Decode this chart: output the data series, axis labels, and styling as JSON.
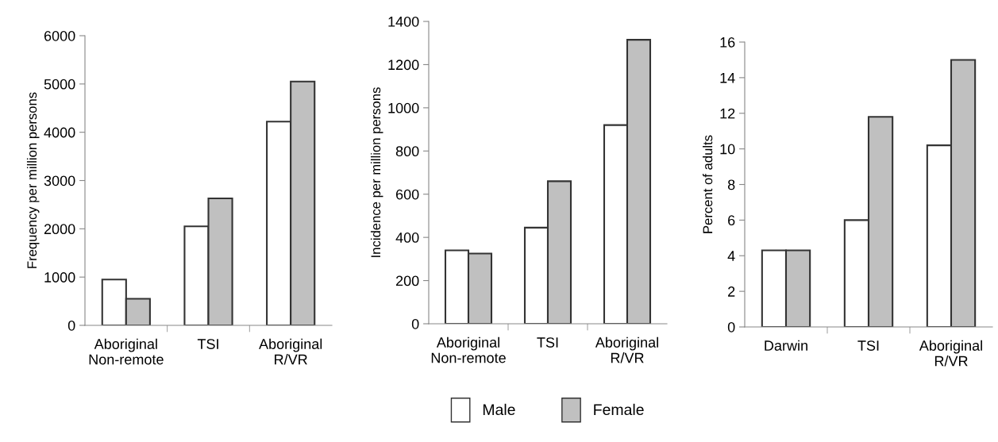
{
  "chart_data": [
    {
      "type": "bar",
      "ylabel": "Frequency per million persons",
      "categories": [
        "Aboriginal\nNon-remote",
        "TSI",
        "Aboriginal\nR/VR"
      ],
      "series": [
        {
          "color": "#ffffff",
          "values": [
            950,
            2050,
            4220
          ]
        },
        {
          "color": "#c0c0c0",
          "values": [
            550,
            2630,
            5050
          ]
        }
      ],
      "ylim": [
        0,
        6000
      ],
      "yticks": [
        0,
        1000,
        2000,
        3000,
        4000,
        5000,
        6000
      ],
      "grid": false,
      "legend": false
    },
    {
      "type": "bar",
      "ylabel": "Incidence per million persons",
      "categories": [
        "Aboriginal\nNon-remote",
        "TSI",
        "Aboriginal\nR/VR"
      ],
      "series": [
        {
          "name": "Male",
          "color": "#ffffff",
          "values": [
            340,
            445,
            920
          ]
        },
        {
          "name": "Female",
          "color": "#c0c0c0",
          "values": [
            325,
            660,
            1315
          ]
        }
      ],
      "ylim": [
        0,
        1400
      ],
      "yticks": [
        0,
        200,
        400,
        600,
        800,
        1000,
        1200,
        1400
      ],
      "grid": false,
      "legend": "bottom"
    },
    {
      "type": "bar",
      "ylabel": "Percent of adults",
      "categories": [
        "Darwin",
        "TSI",
        "Aboriginal\nR/VR"
      ],
      "series": [
        {
          "color": "#ffffff",
          "values": [
            4.3,
            6,
            10.2
          ]
        },
        {
          "color": "#c0c0c0",
          "values": [
            4.3,
            11.8,
            15
          ]
        }
      ],
      "ylim": [
        0,
        16
      ],
      "yticks": [
        0,
        2,
        4,
        6,
        8,
        10,
        12,
        14,
        16
      ],
      "grid": false,
      "legend": false
    }
  ]
}
